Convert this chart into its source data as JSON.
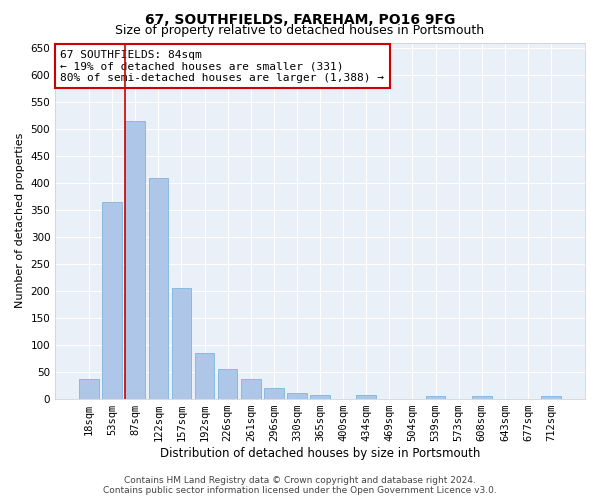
{
  "title": "67, SOUTHFIELDS, FAREHAM, PO16 9FG",
  "subtitle": "Size of property relative to detached houses in Portsmouth",
  "xlabel": "Distribution of detached houses by size in Portsmouth",
  "ylabel": "Number of detached properties",
  "categories": [
    "18sqm",
    "53sqm",
    "87sqm",
    "122sqm",
    "157sqm",
    "192sqm",
    "226sqm",
    "261sqm",
    "296sqm",
    "330sqm",
    "365sqm",
    "400sqm",
    "434sqm",
    "469sqm",
    "504sqm",
    "539sqm",
    "573sqm",
    "608sqm",
    "643sqm",
    "677sqm",
    "712sqm"
  ],
  "values": [
    37,
    365,
    515,
    410,
    205,
    85,
    55,
    37,
    20,
    12,
    8,
    0,
    8,
    0,
    0,
    5,
    0,
    5,
    0,
    0,
    5
  ],
  "bar_color": "#aec6e8",
  "bar_edge_color": "#6baed6",
  "background_color": "#eaf0f8",
  "grid_color": "#ffffff",
  "vline_index": 2,
  "vline_color": "#cc0000",
  "annotation_text": "67 SOUTHFIELDS: 84sqm\n← 19% of detached houses are smaller (331)\n80% of semi-detached houses are larger (1,388) →",
  "annotation_box_color": "#ffffff",
  "annotation_box_edge_color": "#cc0000",
  "footer_line1": "Contains HM Land Registry data © Crown copyright and database right 2024.",
  "footer_line2": "Contains public sector information licensed under the Open Government Licence v3.0.",
  "ylim": [
    0,
    660
  ],
  "yticks": [
    0,
    50,
    100,
    150,
    200,
    250,
    300,
    350,
    400,
    450,
    500,
    550,
    600,
    650
  ],
  "title_fontsize": 10,
  "subtitle_fontsize": 9,
  "xlabel_fontsize": 8.5,
  "ylabel_fontsize": 8,
  "tick_fontsize": 7.5,
  "annotation_fontsize": 8,
  "footer_fontsize": 6.5
}
